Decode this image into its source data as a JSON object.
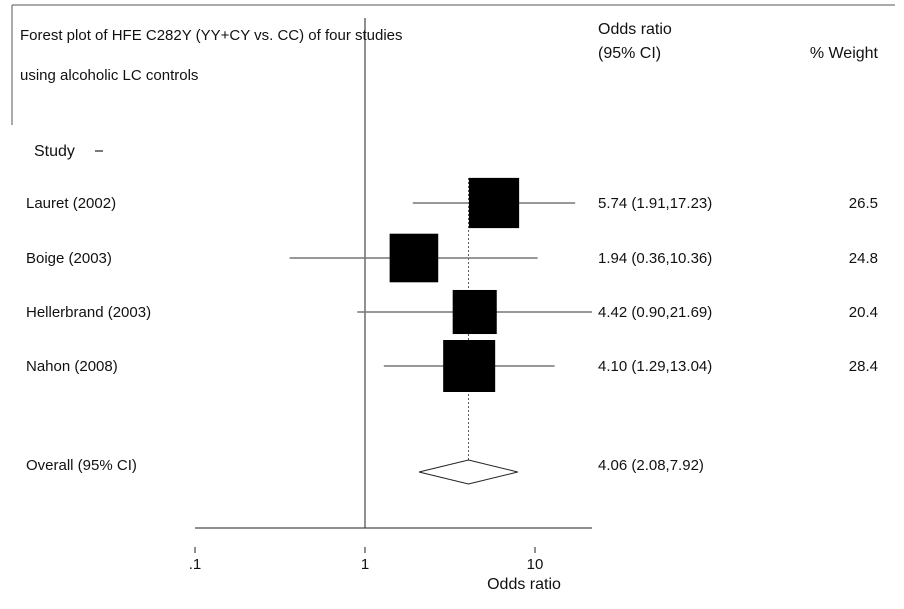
{
  "chart_data": {
    "type": "forest",
    "title_lines": [
      "Forest plot of HFE C282Y (YY+CY vs. CC) of four studies",
      "using alcoholic LC controls"
    ],
    "study_header": "Study",
    "or_header_lines": [
      "Odds ratio",
      "(95% CI)"
    ],
    "weight_header": "% Weight",
    "xlabel": "Odds ratio",
    "x_scale": "log",
    "xlim": [
      0.1,
      20
    ],
    "x_ticks": [
      {
        "value": 0.1,
        "label": ".1"
      },
      {
        "value": 1,
        "label": "1"
      },
      {
        "value": 10,
        "label": "10"
      }
    ],
    "null_line": 1,
    "studies": [
      {
        "name": "Lauret (2002)",
        "or": 5.74,
        "lower": 1.91,
        "upper": 17.23,
        "ci_text": "5.74 (1.91,17.23)",
        "weight": 26.5,
        "weight_text": "26.5"
      },
      {
        "name": "Boige (2003)",
        "or": 1.94,
        "lower": 0.36,
        "upper": 10.36,
        "ci_text": "1.94 (0.36,10.36)",
        "weight": 24.8,
        "weight_text": "24.8"
      },
      {
        "name": "Hellerbrand (2003)",
        "or": 4.42,
        "lower": 0.9,
        "upper": 21.69,
        "ci_text": "4.42 (0.90,21.69)",
        "weight": 20.4,
        "weight_text": "20.4"
      },
      {
        "name": "Nahon (2008)",
        "or": 4.1,
        "lower": 1.29,
        "upper": 13.04,
        "ci_text": "4.10 (1.29,13.04)",
        "weight": 28.4,
        "weight_text": "28.4"
      }
    ],
    "overall": {
      "name": "Overall (95% CI)",
      "or": 4.06,
      "lower": 2.08,
      "upper": 7.92,
      "ci_text": "4.06 (2.08,7.92)"
    }
  }
}
